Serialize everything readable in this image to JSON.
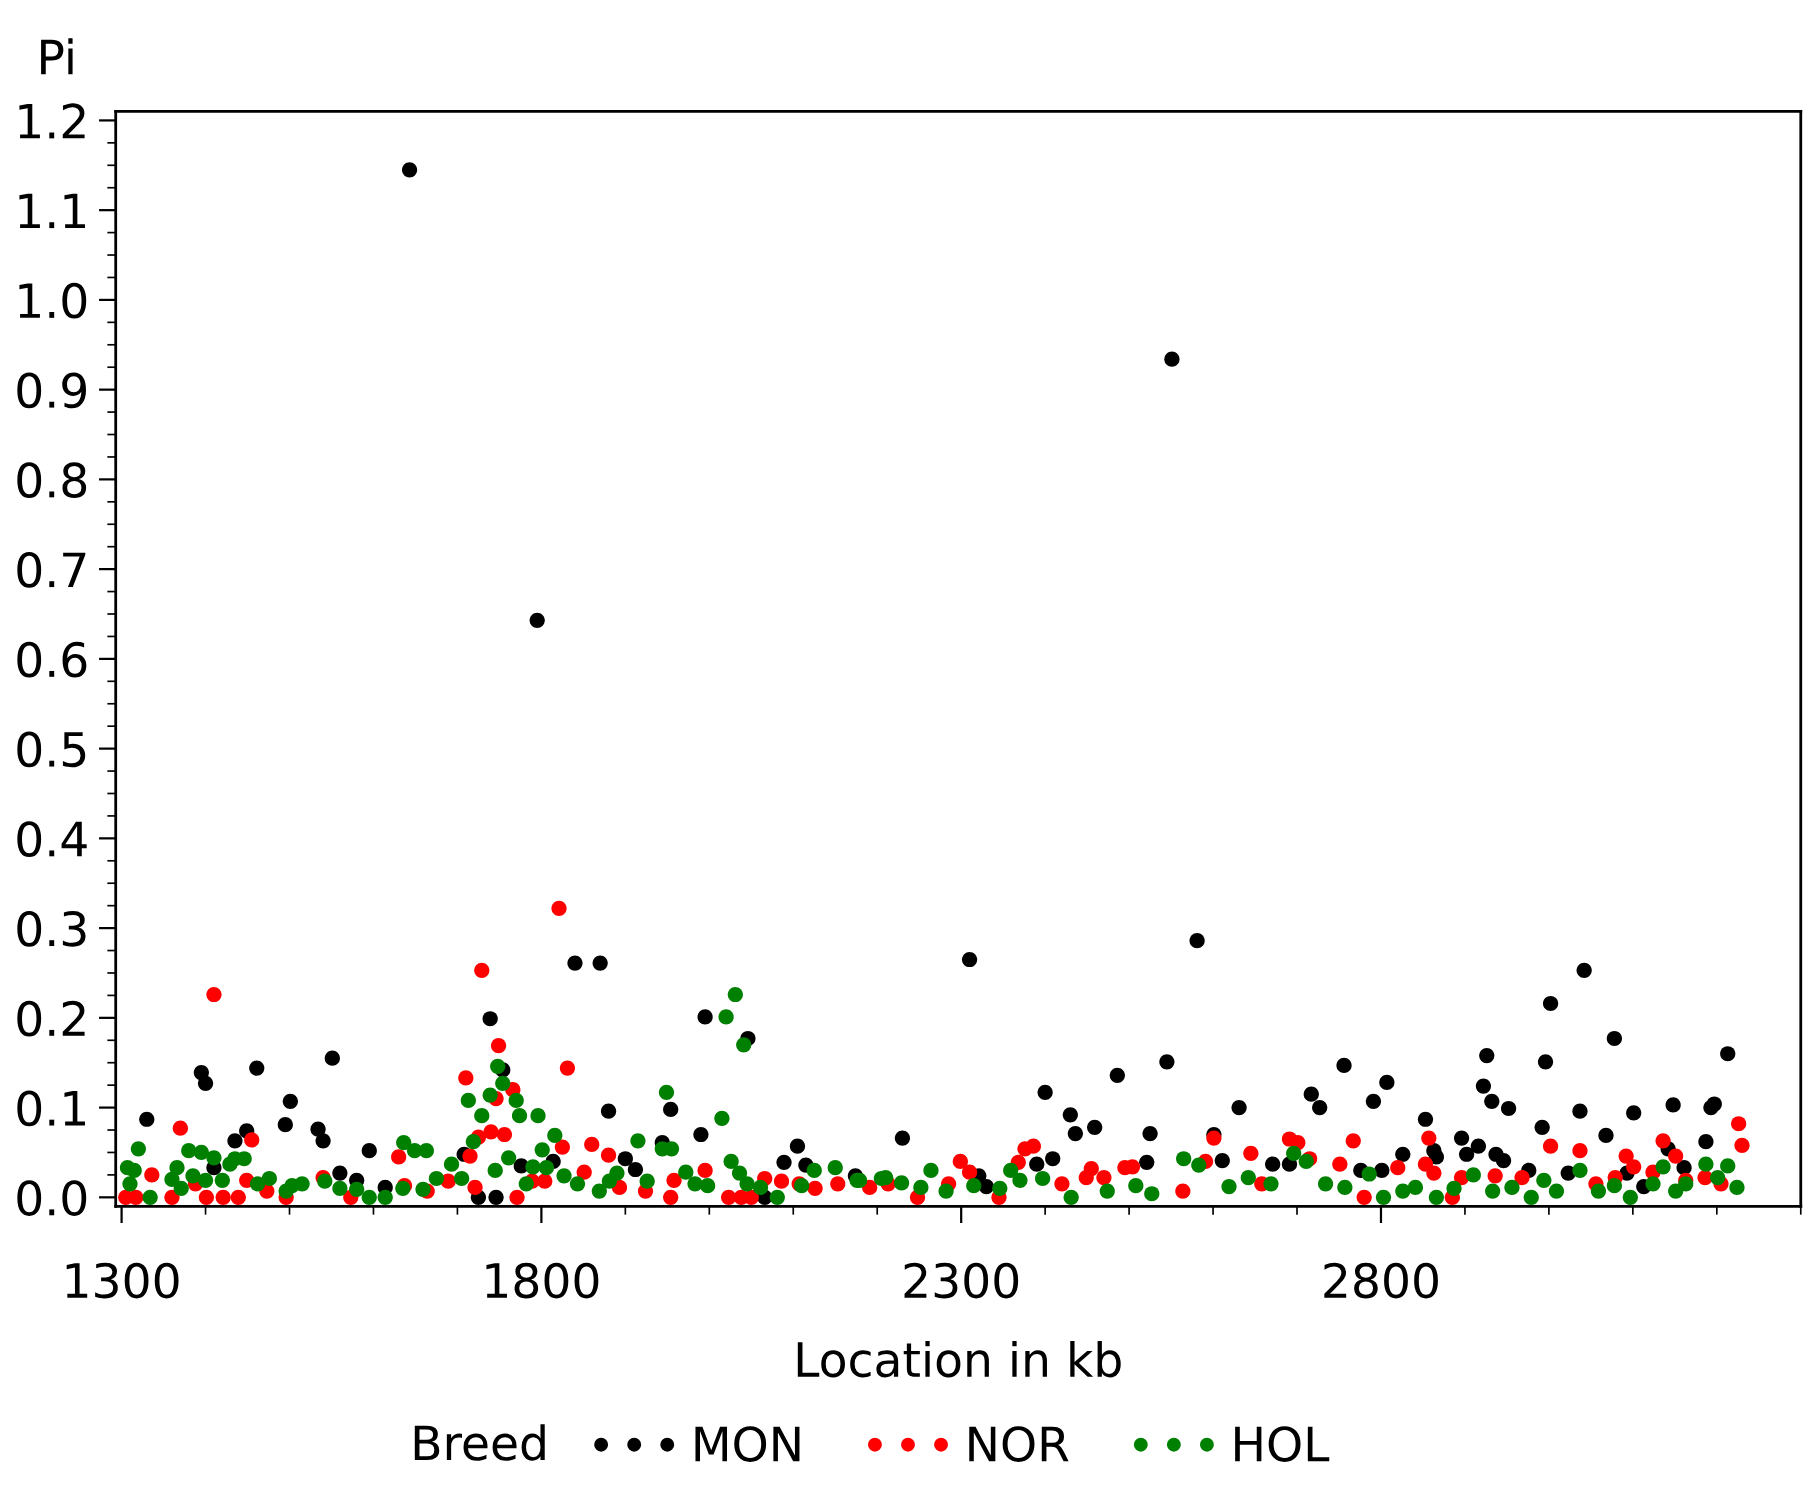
{
  "chart_data": {
    "type": "scatter",
    "xlabel": "Location in kb",
    "ylabel": "Pi",
    "legend_title": "Breed",
    "legend": "bottom",
    "marker": "circle",
    "grid": false,
    "xlim": [
      1293,
      3300
    ],
    "ylim": [
      -0.01,
      1.21
    ],
    "xticks": [
      1300,
      {
        "value": 1400,
        "label": null
      },
      {
        "value": 1500,
        "label": null
      },
      {
        "value": 1600,
        "label": null
      },
      {
        "value": 1700,
        "label": null
      },
      1800,
      {
        "value": 1900,
        "label": null
      },
      {
        "value": 2000,
        "label": null
      },
      {
        "value": 2100,
        "label": null
      },
      {
        "value": 2200,
        "label": null
      },
      2300,
      {
        "value": 2400,
        "label": null
      },
      {
        "value": 2500,
        "label": null
      },
      {
        "value": 2600,
        "label": null
      },
      {
        "value": 2700,
        "label": null
      },
      2800,
      {
        "value": 2900,
        "label": null
      },
      {
        "value": 3000,
        "label": null
      },
      {
        "value": 3100,
        "label": null
      },
      {
        "value": 3200,
        "label": null
      },
      {
        "value": 3300,
        "label": null
      }
    ],
    "yticks": [
      {
        "value": 0,
        "label": "0.0"
      },
      {
        "value": 0.025,
        "label": null
      },
      {
        "value": 0.05,
        "label": null
      },
      {
        "value": 0.075,
        "label": null
      },
      0.1,
      {
        "value": 0.125,
        "label": null
      },
      {
        "value": 0.15,
        "label": null
      },
      {
        "value": 0.175,
        "label": null
      },
      0.2,
      {
        "value": 0.225,
        "label": null
      },
      {
        "value": 0.25,
        "label": null
      },
      {
        "value": 0.275,
        "label": null
      },
      0.3,
      {
        "value": 0.325,
        "label": null
      },
      {
        "value": 0.35,
        "label": null
      },
      {
        "value": 0.375,
        "label": null
      },
      0.4,
      {
        "value": 0.425,
        "label": null
      },
      {
        "value": 0.45,
        "label": null
      },
      {
        "value": 0.475,
        "label": null
      },
      0.5,
      {
        "value": 0.525,
        "label": null
      },
      {
        "value": 0.55,
        "label": null
      },
      {
        "value": 0.575,
        "label": null
      },
      0.6,
      {
        "value": 0.625,
        "label": null
      },
      {
        "value": 0.65,
        "label": null
      },
      {
        "value": 0.675,
        "label": null
      },
      0.7,
      {
        "value": 0.725,
        "label": null
      },
      {
        "value": 0.75,
        "label": null
      },
      {
        "value": 0.775,
        "label": null
      },
      0.8,
      {
        "value": 0.825,
        "label": null
      },
      {
        "value": 0.85,
        "label": null
      },
      {
        "value": 0.875,
        "label": null
      },
      0.9,
      {
        "value": 0.925,
        "label": null
      },
      {
        "value": 0.95,
        "label": null
      },
      {
        "value": 0.975,
        "label": null
      },
      {
        "value": 1.0,
        "label": "1.0"
      },
      {
        "value": 1.025,
        "label": null
      },
      {
        "value": 1.05,
        "label": null
      },
      {
        "value": 1.075,
        "label": null
      },
      1.1,
      {
        "value": 1.125,
        "label": null
      },
      {
        "value": 1.15,
        "label": null
      },
      {
        "value": 1.175,
        "label": null
      },
      1.2
    ],
    "series": [
      {
        "name": "MON",
        "color": "#000000",
        "x": [
          1330,
          1395,
          1400,
          1410,
          1435,
          1449,
          1461,
          1495,
          1501,
          1534,
          1540,
          1551,
          1560,
          1580,
          1595,
          1614,
          1643,
          1708,
          1725,
          1739,
          1746,
          1754,
          1776,
          1795,
          1814,
          1840,
          1870,
          1880,
          1900,
          1912,
          1944,
          1954,
          1990,
          1995,
          2046,
          2066,
          2089,
          2105,
          2115,
          2174,
          2230,
          2310,
          2321,
          2330,
          2390,
          2400,
          2409,
          2430,
          2436,
          2459,
          2486,
          2521,
          2525,
          2545,
          2551,
          2581,
          2601,
          2611,
          2631,
          2671,
          2691,
          2717,
          2727,
          2756,
          2776,
          2791,
          2801,
          2807,
          2826,
          2853,
          2863,
          2866,
          2896,
          2902,
          2916,
          2922,
          2926,
          2932,
          2937,
          2946,
          2952,
          2976,
          2992,
          2996,
          3002,
          3023,
          3037,
          3042,
          3068,
          3078,
          3093,
          3101,
          3113,
          3142,
          3148,
          3161,
          3187,
          3193,
          3197,
          3213
        ],
        "values": [
          0.087,
          0.139,
          0.127,
          0.033,
          0.063,
          0.074,
          0.144,
          0.081,
          0.107,
          0.076,
          0.063,
          0.155,
          0.027,
          0.019,
          0.052,
          0.011,
          1.145,
          0.048,
          0.0,
          0.199,
          0.0,
          0.142,
          0.035,
          0.643,
          0.04,
          0.261,
          0.261,
          0.096,
          0.043,
          0.031,
          0.061,
          0.098,
          0.07,
          0.201,
          0.177,
          0.0,
          0.039,
          0.057,
          0.036,
          0.024,
          0.066,
          0.265,
          0.024,
          0.012,
          0.037,
          0.117,
          0.043,
          0.092,
          0.071,
          0.078,
          0.136,
          0.039,
          0.071,
          0.151,
          0.934,
          0.286,
          0.07,
          0.041,
          0.1,
          0.037,
          0.037,
          0.115,
          0.1,
          0.147,
          0.03,
          0.107,
          0.03,
          0.128,
          0.048,
          0.087,
          0.052,
          0.045,
          0.066,
          0.048,
          0.057,
          0.124,
          0.158,
          0.107,
          0.048,
          0.041,
          0.099,
          0.03,
          0.078,
          0.151,
          0.216,
          0.027,
          0.096,
          0.253,
          0.069,
          0.177,
          0.027,
          0.094,
          0.012,
          0.054,
          0.103,
          0.033,
          0.062,
          0.1,
          0.104,
          0.16
        ]
      },
      {
        "name": "NOR",
        "color": "#ff0000",
        "x": [
          1305,
          1317,
          1336,
          1360,
          1370,
          1388,
          1401,
          1410,
          1421,
          1439,
          1449,
          1455,
          1473,
          1496,
          1540,
          1573,
          1630,
          1637,
          1664,
          1689,
          1710,
          1715,
          1721,
          1725,
          1729,
          1740,
          1746,
          1749,
          1756,
          1766,
          1771,
          1789,
          1804,
          1821,
          1825,
          1831,
          1851,
          1860,
          1880,
          1893,
          1924,
          1954,
          1958,
          1995,
          2023,
          2038,
          2050,
          2066,
          2086,
          2107,
          2126,
          2153,
          2191,
          2213,
          2248,
          2285,
          2299,
          2310,
          2345,
          2368,
          2376,
          2386,
          2420,
          2449,
          2455,
          2470,
          2495,
          2504,
          2564,
          2591,
          2601,
          2645,
          2658,
          2691,
          2701,
          2715,
          2751,
          2767,
          2780,
          2820,
          2853,
          2857,
          2863,
          2885,
          2896,
          2936,
          2968,
          3002,
          3037,
          3056,
          3079,
          3092,
          3101,
          3124,
          3136,
          3151,
          3163,
          3186,
          3205,
          3226,
          3230
        ],
        "values": [
          0.0,
          0.0,
          0.025,
          0.0,
          0.077,
          0.015,
          0.0,
          0.226,
          0.0,
          0.0,
          0.019,
          0.064,
          0.007,
          0.0,
          0.022,
          0.0,
          0.045,
          0.013,
          0.007,
          0.018,
          0.133,
          0.046,
          0.011,
          0.067,
          0.253,
          0.073,
          0.11,
          0.169,
          0.07,
          0.12,
          0.0,
          0.018,
          0.018,
          0.322,
          0.056,
          0.144,
          0.028,
          0.059,
          0.047,
          0.011,
          0.007,
          0.0,
          0.019,
          0.03,
          0.0,
          0.0,
          0.0,
          0.021,
          0.018,
          0.015,
          0.01,
          0.015,
          0.011,
          0.015,
          0.0,
          0.015,
          0.04,
          0.028,
          0.0,
          0.039,
          0.054,
          0.057,
          0.015,
          0.022,
          0.032,
          0.022,
          0.033,
          0.034,
          0.007,
          0.04,
          0.066,
          0.049,
          0.015,
          0.065,
          0.061,
          0.043,
          0.037,
          0.063,
          0.0,
          0.033,
          0.037,
          0.066,
          0.027,
          0.0,
          0.022,
          0.024,
          0.022,
          0.057,
          0.052,
          0.015,
          0.022,
          0.046,
          0.034,
          0.028,
          0.063,
          0.046,
          0.019,
          0.022,
          0.015,
          0.082,
          0.058
        ]
      },
      {
        "name": "HOL",
        "color": "#008000",
        "x": [
          1307,
          1310,
          1315,
          1320,
          1334,
          1360,
          1366,
          1371,
          1380,
          1385,
          1395,
          1400,
          1410,
          1420,
          1429,
          1435,
          1446,
          1462,
          1476,
          1496,
          1503,
          1515,
          1542,
          1560,
          1580,
          1595,
          1614,
          1635,
          1636,
          1649,
          1659,
          1663,
          1675,
          1693,
          1705,
          1713,
          1719,
          1729,
          1739,
          1745,
          1748,
          1754,
          1761,
          1770,
          1774,
          1782,
          1790,
          1796,
          1801,
          1806,
          1816,
          1827,
          1843,
          1869,
          1881,
          1890,
          1915,
          1926,
          1944,
          1949,
          1955,
          1972,
          1983,
          1998,
          2015,
          2020,
          2026,
          2031,
          2036,
          2041,
          2045,
          2061,
          2081,
          2110,
          2125,
          2150,
          2176,
          2179,
          2205,
          2210,
          2229,
          2252,
          2264,
          2282,
          2315,
          2346,
          2359,
          2370,
          2397,
          2431,
          2474,
          2508,
          2527,
          2565,
          2583,
          2619,
          2642,
          2669,
          2696,
          2711,
          2734,
          2757,
          2786,
          2803,
          2826,
          2841,
          2866,
          2887,
          2910,
          2933,
          2956,
          2979,
          2994,
          3009,
          3037,
          3059,
          3078,
          3097,
          3124,
          3136,
          3151,
          3163,
          3187,
          3201,
          3213,
          3224
        ],
        "values": [
          0.033,
          0.015,
          0.03,
          0.054,
          0.0,
          0.02,
          0.033,
          0.01,
          0.052,
          0.024,
          0.05,
          0.019,
          0.044,
          0.019,
          0.037,
          0.043,
          0.043,
          0.015,
          0.021,
          0.007,
          0.013,
          0.015,
          0.018,
          0.01,
          0.009,
          0.0,
          0.0,
          0.01,
          0.061,
          0.052,
          0.009,
          0.052,
          0.021,
          0.037,
          0.021,
          0.108,
          0.062,
          0.091,
          0.114,
          0.03,
          0.146,
          0.127,
          0.044,
          0.108,
          0.091,
          0.015,
          0.034,
          0.091,
          0.053,
          0.033,
          0.069,
          0.024,
          0.015,
          0.007,
          0.018,
          0.027,
          0.063,
          0.018,
          0.054,
          0.117,
          0.054,
          0.028,
          0.015,
          0.013,
          0.088,
          0.201,
          0.04,
          0.226,
          0.027,
          0.17,
          0.015,
          0.011,
          0.0,
          0.013,
          0.03,
          0.033,
          0.019,
          0.019,
          0.021,
          0.022,
          0.016,
          0.011,
          0.03,
          0.007,
          0.013,
          0.01,
          0.03,
          0.019,
          0.021,
          0.0,
          0.007,
          0.013,
          0.004,
          0.043,
          0.036,
          0.012,
          0.022,
          0.015,
          0.049,
          0.04,
          0.015,
          0.011,
          0.026,
          0.0,
          0.007,
          0.011,
          0.0,
          0.01,
          0.025,
          0.007,
          0.011,
          0.0,
          0.019,
          0.007,
          0.03,
          0.007,
          0.013,
          0.0,
          0.015,
          0.034,
          0.007,
          0.015,
          0.037,
          0.022,
          0.035,
          0.011
        ]
      }
    ]
  }
}
